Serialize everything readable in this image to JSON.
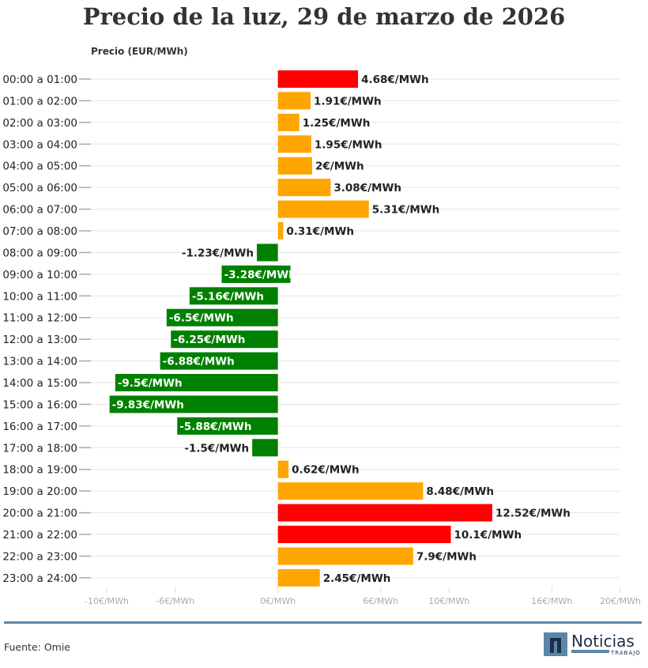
{
  "chart_data": {
    "type": "bar",
    "orientation": "horizontal",
    "title": "Precio de la luz, 29 de marzo de 2026",
    "ylabel": "Precio (EUR/MWh)",
    "xlim": [
      -10,
      20
    ],
    "x_ticks": [
      -10,
      -6,
      0,
      6,
      10,
      16,
      20
    ],
    "x_tick_labels": [
      "-10€/MWh",
      "-6€/MWh",
      "0€/MWh",
      "6€/MWh",
      "10€/MWh",
      "16€/MWh",
      "20€/MWh"
    ],
    "grid": "horizontal",
    "categories": [
      "00:00 a 01:00",
      "01:00 a 02:00",
      "02:00 a 03:00",
      "03:00 a 04:00",
      "04:00 a 05:00",
      "05:00 a 06:00",
      "06:00 a 07:00",
      "07:00 a 08:00",
      "08:00 a 09:00",
      "09:00 a 10:00",
      "10:00 a 11:00",
      "11:00 a 12:00",
      "12:00 a 13:00",
      "13:00 a 14:00",
      "14:00 a 15:00",
      "15:00 a 16:00",
      "16:00 a 17:00",
      "17:00 a 18:00",
      "18:00 a 19:00",
      "19:00 a 20:00",
      "20:00 a 21:00",
      "21:00 a 22:00",
      "22:00 a 23:00",
      "23:00 a 24:00"
    ],
    "values": [
      4.68,
      1.91,
      1.25,
      1.95,
      2,
      3.08,
      5.31,
      0.31,
      -1.23,
      -3.28,
      -5.16,
      -6.5,
      -6.25,
      -6.88,
      -9.5,
      -9.83,
      -5.88,
      -1.5,
      0.62,
      8.48,
      12.52,
      10.1,
      7.9,
      2.45
    ],
    "data_labels": [
      "4.68€/MWh",
      "1.91€/MWh",
      "1.25€/MWh",
      "1.95€/MWh",
      "2€/MWh",
      "3.08€/MWh",
      "5.31€/MWh",
      "0.31€/MWh",
      "-1.23€/MWh",
      "-3.28€/MWh",
      "-5.16€/MWh",
      "-6.5€/MWh",
      "-6.25€/MWh",
      "-6.88€/MWh",
      "-9.5€/MWh",
      "-9.83€/MWh",
      "-5.88€/MWh",
      "-1.5€/MWh",
      "0.62€/MWh",
      "8.48€/MWh",
      "12.52€/MWh",
      "10.1€/MWh",
      "7.9€/MWh",
      "2.45€/MWh"
    ],
    "colors": [
      "#ff0000",
      "#ffa500",
      "#ffa500",
      "#ffa500",
      "#ffa500",
      "#ffa500",
      "#ffa500",
      "#ffa500",
      "#008000",
      "#008000",
      "#008000",
      "#008000",
      "#008000",
      "#008000",
      "#008000",
      "#008000",
      "#008000",
      "#008000",
      "#ffa500",
      "#ffa500",
      "#ff0000",
      "#ff0000",
      "#ffa500",
      "#ffa500"
    ]
  },
  "footer": {
    "source": "Fuente: Omie",
    "logo_text": "Noticias",
    "logo_sub": "TRABAJO"
  }
}
